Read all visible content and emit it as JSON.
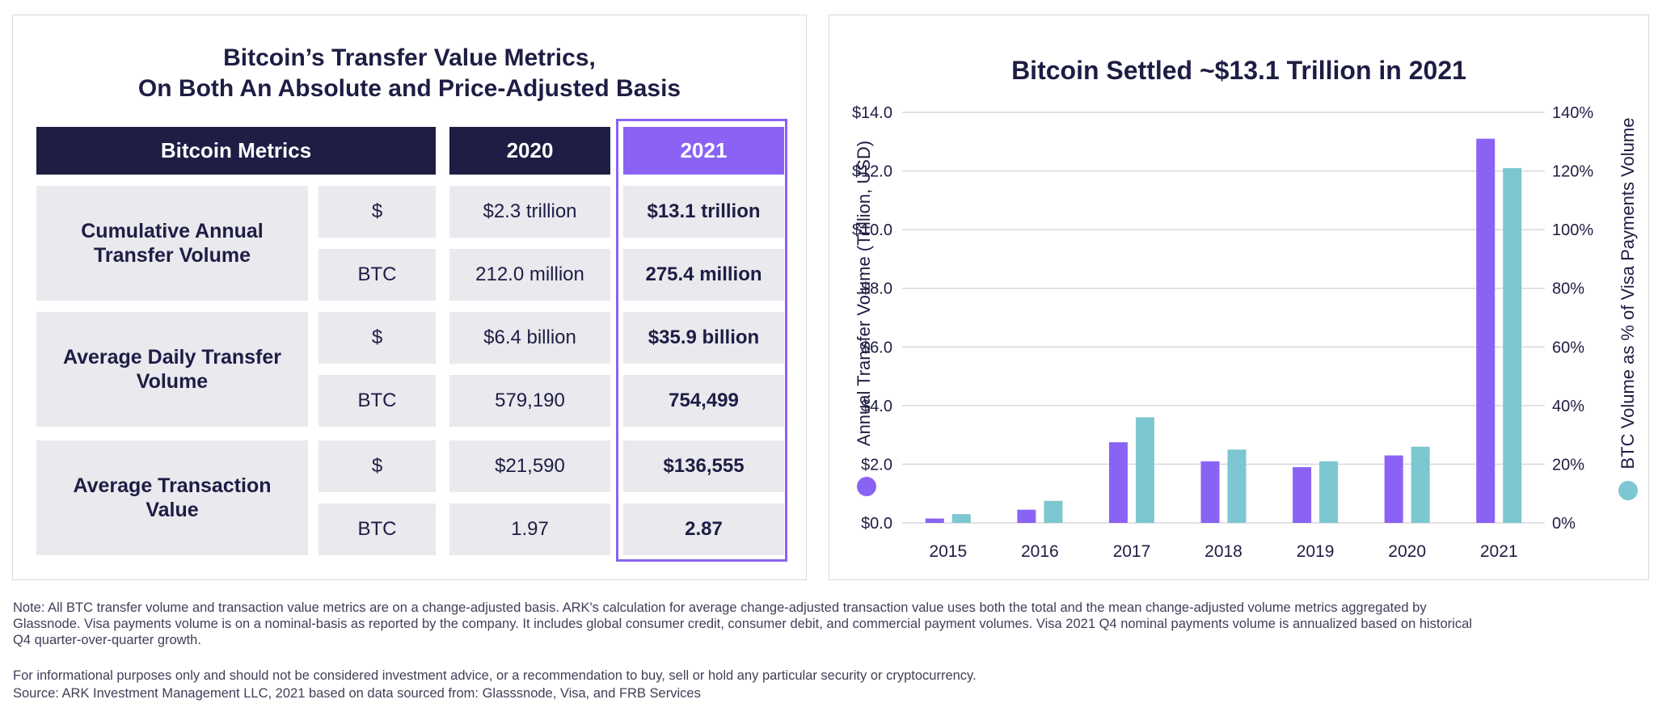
{
  "table": {
    "title_line1": "Bitcoin’s Transfer Value Metrics,",
    "title_line2": "On Both An Absolute and Price-Adjusted Basis",
    "headers": {
      "metrics": "Bitcoin Metrics",
      "y2020": "2020",
      "y2021": "2021"
    },
    "groups": [
      {
        "label": "Cumulative Annual Transfer Volume",
        "rows": [
          {
            "unit": "$",
            "v2020": "$2.3 trillion",
            "v2021": "$13.1 trillion"
          },
          {
            "unit": "BTC",
            "v2020": "212.0 million",
            "v2021": "275.4 million"
          }
        ]
      },
      {
        "label": "Average Daily Transfer Volume",
        "rows": [
          {
            "unit": "$",
            "v2020": "$6.4 billion",
            "v2021": "$35.9 billion"
          },
          {
            "unit": "BTC",
            "v2020": "579,190",
            "v2021": "754,499"
          }
        ]
      },
      {
        "label": "Average Transaction Value",
        "rows": [
          {
            "unit": "$",
            "v2020": "$21,590",
            "v2021": "$136,555"
          },
          {
            "unit": "BTC",
            "v2020": "1.97",
            "v2021": "2.87"
          }
        ]
      }
    ]
  },
  "chart_data": {
    "type": "bar",
    "title": "Bitcoin Settled ~$13.1 Trillion in 2021",
    "categories": [
      "2015",
      "2016",
      "2017",
      "2018",
      "2019",
      "2020",
      "2021"
    ],
    "series": [
      {
        "name": "Annual Transfer Volume (Trillion, USD)",
        "axis": "left",
        "color": "#8a63f5",
        "values": [
          0.15,
          0.45,
          2.75,
          2.1,
          1.9,
          2.3,
          13.1
        ]
      },
      {
        "name": "BTC Volume as % of Visa Payments Volume",
        "axis": "right",
        "color": "#7cc7d1",
        "values": [
          3,
          7.5,
          36,
          25,
          21,
          26,
          121
        ]
      }
    ],
    "ylabel_left": "Annual Transfer Volume (Trillion, USD)",
    "ylabel_right": "BTC Volume as % of Visa Payments Volume",
    "ylim_left": [
      0,
      14
    ],
    "ylim_right": [
      0,
      140
    ],
    "yticks_left": [
      "$0.0",
      "$2.0",
      "$4.0",
      "$6.0",
      "$8.0",
      "$10.0",
      "$12.0",
      "$14.0"
    ],
    "yticks_right": [
      "0%",
      "20%",
      "40%",
      "60%",
      "80%",
      "100%",
      "120%",
      "140%"
    ],
    "grid": true
  },
  "footnotes": {
    "note_line1": "Note: All BTC transfer volume and transaction value metrics are on a change-adjusted basis. ARK's calculation for average change-adjusted transaction value uses both the total and the mean change-adjusted volume metrics aggregated by",
    "note_line2": "Glassnode. Visa payments volume is on a nominal-basis as reported by the company. It includes global consumer credit, consumer debit, and commercial payment volumes. Visa 2021 Q4 nominal payments volume is annualized based on historical",
    "note_line3": "Q4 quarter-over-quarter growth.",
    "disclaimer": "For informational purposes only and should not be considered investment advice, or a recommendation to buy, sell or hold any particular security or cryptocurrency.",
    "source": "Source: ARK Investment Management LLC, 2021 based on data sourced from: Glasssnode, Visa, and FRB Services"
  }
}
